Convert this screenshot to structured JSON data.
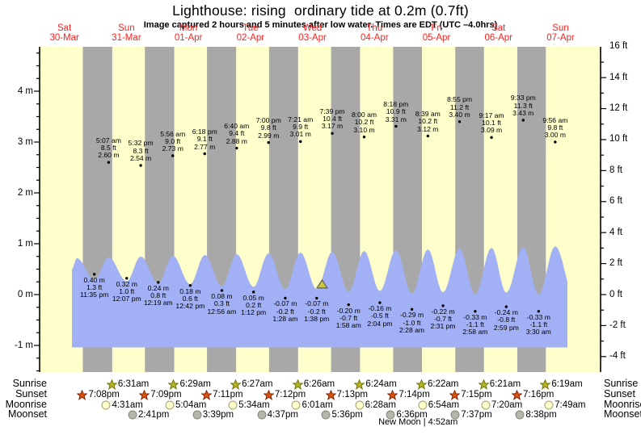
{
  "chart_data": {
    "type": "area",
    "title": "Lighthouse: rising  ordinary tide at 0.2m (0.7ft)",
    "subtitle": "Image captured 2 hours and 5 minutes after low water. Times are EDT (UTC –4.0hrs)",
    "ylabel_left_unit": "m",
    "ylabel_right_unit": "ft",
    "y_axis_left_ticks": [
      "4 m",
      "3 m",
      "2 m",
      "1 m",
      "0 m",
      "-1 m"
    ],
    "y_axis_right_ticks": [
      "16 ft",
      "14 ft",
      "12 ft",
      "10 ft",
      "8 ft",
      "6 ft",
      "4 ft",
      "2 ft",
      "0 ft",
      "-2 ft",
      "-4 ft"
    ],
    "days": [
      {
        "weekday": "Sat",
        "date": "30-Mar"
      },
      {
        "weekday": "Sun",
        "date": "31-Mar"
      },
      {
        "weekday": "Mon",
        "date": "01-Apr"
      },
      {
        "weekday": "Tue",
        "date": "02-Apr"
      },
      {
        "weekday": "Wed",
        "date": "03-Apr"
      },
      {
        "weekday": "Thu",
        "date": "04-Apr"
      },
      {
        "weekday": "Fri",
        "date": "05-Apr"
      },
      {
        "weekday": "Sat",
        "date": "06-Apr"
      },
      {
        "weekday": "Sun",
        "date": "07-Apr"
      }
    ],
    "high_tides": [
      {
        "day": 1,
        "lines": [
          "5:07 am",
          "8.5 ft",
          "2.60 m"
        ]
      },
      {
        "day": 1,
        "lines": [
          "5:32 pm",
          "8.3 ft",
          "2.54 m"
        ]
      },
      {
        "day": 2,
        "lines": [
          "5:56 am",
          "9.0 ft",
          "2.73 m"
        ]
      },
      {
        "day": 2,
        "lines": [
          "6:18 pm",
          "9.1 ft",
          "2.77 m"
        ]
      },
      {
        "day": 3,
        "lines": [
          "6:40 am",
          "9.4 ft",
          "2.88 m"
        ]
      },
      {
        "day": 3,
        "lines": [
          "7:00 pm",
          "9.8 ft",
          "2.99 m"
        ]
      },
      {
        "day": 4,
        "lines": [
          "7:21 am",
          "9.9 ft",
          "3.01 m"
        ]
      },
      {
        "day": 4,
        "lines": [
          "7:39 pm",
          "10.4 ft",
          "3.17 m"
        ]
      },
      {
        "day": 5,
        "lines": [
          "8:00 am",
          "10.2 ft",
          "3.10 m"
        ]
      },
      {
        "day": 5,
        "lines": [
          "8:18 pm",
          "10.9 ft",
          "3.31 m"
        ]
      },
      {
        "day": 6,
        "lines": [
          "8:39 am",
          "10.2 ft",
          "3.12 m"
        ]
      },
      {
        "day": 6,
        "lines": [
          "8:55 pm",
          "11.2 ft",
          "3.40 m"
        ]
      },
      {
        "day": 7,
        "lines": [
          "9:17 am",
          "10.1 ft",
          "3.09 m"
        ]
      },
      {
        "day": 7,
        "lines": [
          "9:33 pm",
          "11.3 ft",
          "3.43 m"
        ]
      },
      {
        "day": 8,
        "lines": [
          "9:56 am",
          "9.8 ft",
          "3.00 m"
        ]
      }
    ],
    "low_tides": [
      {
        "day": 0,
        "lines": [
          "0.40 m",
          "1.3 ft",
          "11:35 pm"
        ]
      },
      {
        "day": 1,
        "lines": [
          "0.32 m",
          "1.0 ft",
          "12:07 pm"
        ]
      },
      {
        "day": 2,
        "lines": [
          "0.24 m",
          "0.8 ft",
          "12:19 am"
        ]
      },
      {
        "day": 2,
        "lines": [
          "0.18 m",
          "0.6 ft",
          "12:42 pm"
        ]
      },
      {
        "day": 3,
        "lines": [
          "0.08 m",
          "0.3 ft",
          "12:56 am"
        ]
      },
      {
        "day": 3,
        "lines": [
          "0.05 m",
          "0.2 ft",
          "1:12 pm"
        ]
      },
      {
        "day": 4,
        "lines": [
          "-0.07 m",
          "-0.2 ft",
          "1:28 am"
        ]
      },
      {
        "day": 4,
        "lines": [
          "-0.07 m",
          "-0.2 ft",
          "1:38 pm"
        ]
      },
      {
        "day": 5,
        "lines": [
          "-0.20 m",
          "-0.7 ft",
          "1:58 am"
        ]
      },
      {
        "day": 5,
        "lines": [
          "-0.16 m",
          "-0.5 ft",
          "2:04 pm"
        ]
      },
      {
        "day": 6,
        "lines": [
          "-0.29 m",
          "-1.0 ft",
          "2:28 am"
        ]
      },
      {
        "day": 6,
        "lines": [
          "-0.22 m",
          "-0.7 ft",
          "2:31 pm"
        ]
      },
      {
        "day": 7,
        "lines": [
          "-0.33 m",
          "-1.1 ft",
          "2:58 am"
        ]
      },
      {
        "day": 7,
        "lines": [
          "-0.24 m",
          "-0.8 ft",
          "2:59 pm"
        ]
      },
      {
        "day": 8,
        "lines": [
          "-0.33 m",
          "-1.1 ft",
          "3:30 am"
        ]
      }
    ],
    "capture_marker": {
      "day": 4,
      "time": "3:43 pm",
      "height_m": 0.2
    },
    "astro": {
      "rows": [
        {
          "label": "Sunrise"
        },
        {
          "label": "Sunset"
        },
        {
          "label": "Moonrise"
        },
        {
          "label": "Moonset"
        }
      ],
      "sunrise": [
        {
          "day": 1,
          "time": "6:31am"
        },
        {
          "day": 2,
          "time": "6:29am"
        },
        {
          "day": 3,
          "time": "6:27am"
        },
        {
          "day": 4,
          "time": "6:26am"
        },
        {
          "day": 5,
          "time": "6:24am"
        },
        {
          "day": 6,
          "time": "6:22am"
        },
        {
          "day": 7,
          "time": "6:21am"
        },
        {
          "day": 8,
          "time": "6:19am"
        }
      ],
      "sunset": [
        {
          "day": 0,
          "time": "7:08pm"
        },
        {
          "day": 1,
          "time": "7:09pm"
        },
        {
          "day": 2,
          "time": "7:11pm"
        },
        {
          "day": 3,
          "time": "7:12pm"
        },
        {
          "day": 4,
          "time": "7:13pm"
        },
        {
          "day": 5,
          "time": "7:14pm"
        },
        {
          "day": 6,
          "time": "7:15pm"
        },
        {
          "day": 7,
          "time": "7:16pm"
        }
      ],
      "moonrise": [
        {
          "day": 1,
          "time": "4:31am"
        },
        {
          "day": 2,
          "time": "5:04am"
        },
        {
          "day": 3,
          "time": "5:34am"
        },
        {
          "day": 4,
          "time": "6:01am"
        },
        {
          "day": 5,
          "time": "6:28am"
        },
        {
          "day": 6,
          "time": "6:54am"
        },
        {
          "day": 7,
          "time": "7:20am"
        },
        {
          "day": 8,
          "time": "7:49am"
        }
      ],
      "moonset": [
        {
          "day": 1,
          "time": "2:41pm"
        },
        {
          "day": 2,
          "time": "3:39pm"
        },
        {
          "day": 3,
          "time": "4:37pm"
        },
        {
          "day": 4,
          "time": "5:36pm"
        },
        {
          "day": 5,
          "time": "6:36pm"
        },
        {
          "day": 6,
          "time": "7:37pm"
        },
        {
          "day": 7,
          "time": "8:38pm"
        }
      ],
      "new_moon": {
        "day": 6,
        "time": "4:52am",
        "label": "New Moon | 4:52am"
      }
    },
    "colors": {
      "day_bg": "#ffffcc",
      "night_bg": "#a8a8a8",
      "water": "#a2b0f5",
      "date_label": "#ff2020",
      "sunrise_star": "#b3b326",
      "sunset_star": "#d9500f",
      "moonrise_fill": "#ffffcc",
      "moonset_fill": "#b5b5a8",
      "marker_fill": "#c8c832"
    }
  }
}
